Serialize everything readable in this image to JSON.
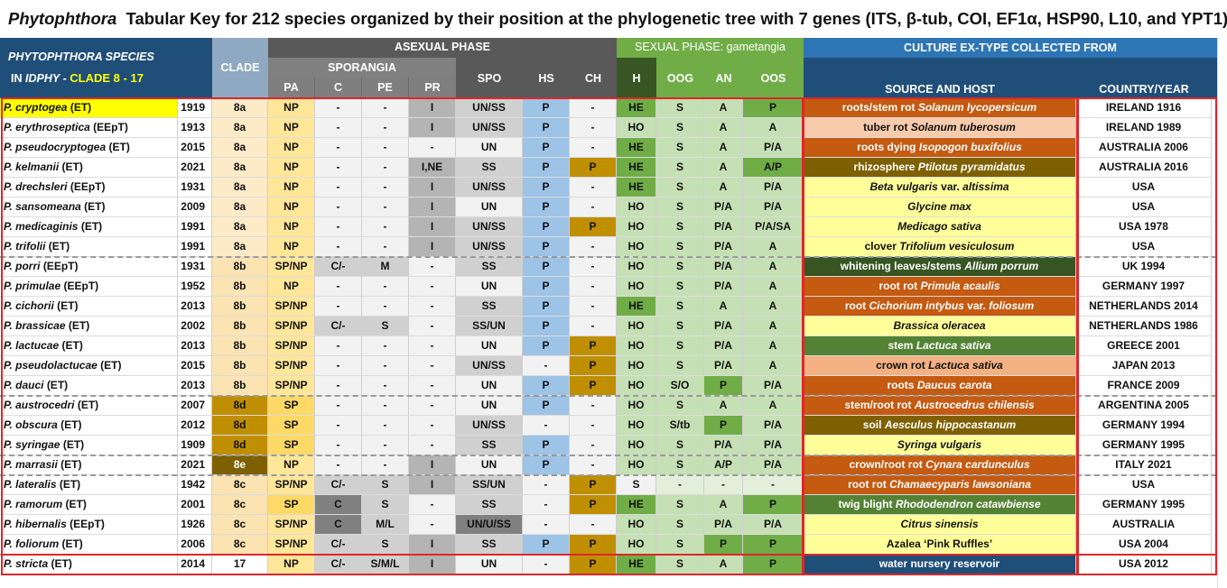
{
  "title": {
    "genus": "Phytophthora",
    "rest": "Tabular Key for 212 species organized by their position at the phylogenetic tree with 7 genes (ITS, β-tub, COI, EF1α, HSP90, L10, and YPT1)"
  },
  "header": {
    "species_line1": "PHYTOPHTHORA  SPECIES",
    "species_line2_prefix": "IN ",
    "species_line2_italic": "IDPHY",
    "species_line2_mid": " -  ",
    "species_line2_clade": "CLADE 8 - 17",
    "clade": "CLADE",
    "asexual": "ASEXUAL PHASE",
    "sporangia": "SPORANGIA",
    "pa": "PA",
    "c": "C",
    "pe": "PE",
    "pr": "PR",
    "spo": "SPO",
    "hs": "HS",
    "ch": "CH",
    "sexual": "SEXUAL PHASE: gametangia",
    "h": "H",
    "oog": "OOG",
    "an": "AN",
    "oos": "OOS",
    "culture": "CULTURE EX-TYPE COLLECTED FROM",
    "source": "SOURCE AND HOST",
    "country": "COUNTRY/YEAR"
  },
  "colors": {
    "header_blue": "#1f4e79",
    "clade_header": "#8ea9c1",
    "asexual_header": "#595959",
    "sporangia_header": "#808080",
    "sexual_header": "#70ad47",
    "h_header": "#375623",
    "culture_header": "#2e75b6",
    "highlight_yellow": "#ffff00",
    "red_border": "#e0262a"
  },
  "rows": [
    {
      "species": "P. cryptogea",
      "tag": "(ET)",
      "year": "1919",
      "clade": "8a",
      "pa": "NP",
      "c": "-",
      "pe": "-",
      "pr": "I",
      "spo": "UN/SS",
      "hs": "P",
      "ch": "-",
      "h": "HE",
      "oog": "S",
      "an": "A",
      "oos": "P",
      "source": [
        {
          "t": "roots/stem rot "
        },
        {
          "t": "Solanum lycopersicum",
          "i": true
        }
      ],
      "country": "IRELAND 1916"
    },
    {
      "species": "P. erythroseptica",
      "tag": "(EEpT)",
      "year": "1913",
      "clade": "8a",
      "pa": "NP",
      "c": "-",
      "pe": "-",
      "pr": "I",
      "spo": "UN/SS",
      "hs": "P",
      "ch": "-",
      "h": "HO",
      "oog": "S",
      "an": "A",
      "oos": "A",
      "source": [
        {
          "t": "tuber rot "
        },
        {
          "t": "Solanum tuberosum",
          "i": true
        }
      ],
      "country": "IRELAND 1989"
    },
    {
      "species": "P. pseudocryptogea",
      "tag": "(ET)",
      "year": "2015",
      "clade": "8a",
      "pa": "NP",
      "c": "-",
      "pe": "-",
      "pr": "-",
      "spo": "UN",
      "hs": "P",
      "ch": "-",
      "h": "HE",
      "oog": "S",
      "an": "A",
      "oos": "P/A",
      "source": [
        {
          "t": "roots dying "
        },
        {
          "t": "Isopogon buxifolius",
          "i": true
        }
      ],
      "country": "AUSTRALIA 2006"
    },
    {
      "species": "P. kelmanii",
      "tag": "(ET)",
      "year": "2021",
      "clade": "8a",
      "pa": "NP",
      "c": "-",
      "pe": "-",
      "pr": "I,NE",
      "spo": "SS",
      "hs": "P",
      "ch": "P",
      "h": "HE",
      "oog": "S",
      "an": "A",
      "oos": "A/P",
      "source": [
        {
          "t": "rhizosphere "
        },
        {
          "t": "Ptilotus pyramidatus",
          "i": true
        }
      ],
      "country": "AUSTRALIA 2016"
    },
    {
      "species": "P. drechsleri",
      "tag": "(EEpT)",
      "year": "1931",
      "clade": "8a",
      "pa": "NP",
      "c": "-",
      "pe": "-",
      "pr": "I",
      "spo": "UN/SS",
      "hs": "P",
      "ch": "-",
      "h": "HE",
      "oog": "S",
      "an": "A",
      "oos": "P/A",
      "source": [
        {
          "t": "Beta vulgaris",
          "i": true
        },
        {
          "t": "  var. "
        },
        {
          "t": "altissima",
          "i": true
        }
      ],
      "country": "USA"
    },
    {
      "species": "P. sansomeana",
      "tag": "(ET)",
      "year": "2009",
      "clade": "8a",
      "pa": "NP",
      "c": "-",
      "pe": "-",
      "pr": "I",
      "spo": "UN",
      "hs": "P",
      "ch": "-",
      "h": "HO",
      "oog": "S",
      "an": "P/A",
      "oos": "P/A",
      "source": [
        {
          "t": "Glycine max",
          "i": true
        }
      ],
      "country": "USA"
    },
    {
      "species": "P. medicaginis",
      "tag": "(ET)",
      "year": "1991",
      "clade": "8a",
      "pa": "NP",
      "c": "-",
      "pe": "-",
      "pr": "I",
      "spo": "UN/SS",
      "hs": "P",
      "ch": "P",
      "h": "HO",
      "oog": "S",
      "an": "P/A",
      "oos": "P/A/SA",
      "source": [
        {
          "t": "Medicago sativa",
          "i": true
        }
      ],
      "country": "USA 1978"
    },
    {
      "species": "P. trifolii",
      "tag": "(ET)",
      "year": "1991",
      "clade": "8a",
      "pa": "NP",
      "c": "-",
      "pe": "-",
      "pr": "I",
      "spo": "UN/SS",
      "hs": "P",
      "ch": "-",
      "h": "HO",
      "oog": "S",
      "an": "P/A",
      "oos": "A",
      "source": [
        {
          "t": "clover "
        },
        {
          "t": "Trifolium vesiculosum",
          "i": true
        }
      ],
      "country": "USA"
    },
    {
      "species": "P. porri",
      "tag": "(EEpT)",
      "year": "1931",
      "clade": "8b",
      "pa": "SP/NP",
      "c": "C/-",
      "pe": "M",
      "pr": "-",
      "spo": "SS",
      "hs": "P",
      "ch": "-",
      "h": "HO",
      "oog": "S",
      "an": "P/A",
      "oos": "A",
      "source": [
        {
          "t": "whitening leaves/stems "
        },
        {
          "t": "Allium porrum",
          "i": true
        }
      ],
      "country": "UK 1994"
    },
    {
      "species": "P. primulae",
      "tag": "(EEpT)",
      "year": "1952",
      "clade": "8b",
      "pa": "NP",
      "c": "-",
      "pe": "-",
      "pr": "-",
      "spo": "UN",
      "hs": "P",
      "ch": "-",
      "h": "HO",
      "oog": "S",
      "an": "P/A",
      "oos": "A",
      "source": [
        {
          "t": "root rot "
        },
        {
          "t": "Primula acaulis",
          "i": true
        }
      ],
      "country": "GERMANY 1997"
    },
    {
      "species": "P. cichorii",
      "tag": "(ET)",
      "year": "2013",
      "clade": "8b",
      "pa": "SP/NP",
      "c": "-",
      "pe": "-",
      "pr": "-",
      "spo": "SS",
      "hs": "P",
      "ch": "-",
      "h": "HE",
      "oog": "S",
      "an": "A",
      "oos": "A",
      "source": [
        {
          "t": "root "
        },
        {
          "t": "Cichorium intybus",
          "i": true
        },
        {
          "t": "  var. "
        },
        {
          "t": "foliosum",
          "i": true
        }
      ],
      "country": "NETHERLANDS 2014"
    },
    {
      "species": "P. brassicae",
      "tag": "(ET)",
      "year": "2002",
      "clade": "8b",
      "pa": "SP/NP",
      "c": "C/-",
      "pe": "S",
      "pr": "-",
      "spo": "SS/UN",
      "hs": "P",
      "ch": "-",
      "h": "HO",
      "oog": "S",
      "an": "P/A",
      "oos": "A",
      "source": [
        {
          "t": "Brassica oleracea",
          "i": true
        }
      ],
      "country": "NETHERLANDS 1986"
    },
    {
      "species": "P. lactucae",
      "tag": "(ET)",
      "year": "2013",
      "clade": "8b",
      "pa": "SP/NP",
      "c": "-",
      "pe": "-",
      "pr": "-",
      "spo": "UN",
      "hs": "P",
      "ch": "P",
      "h": "HO",
      "oog": "S",
      "an": "P/A",
      "oos": "A",
      "source": [
        {
          "t": "stem "
        },
        {
          "t": "Lactuca sativa",
          "i": true
        }
      ],
      "country": "GREECE 2001"
    },
    {
      "species": "P. pseudolactucae",
      "tag": "(ET)",
      "year": "2015",
      "clade": "8b",
      "pa": "SP/NP",
      "c": "-",
      "pe": "-",
      "pr": "-",
      "spo": "UN/SS",
      "hs": "-",
      "ch": "P",
      "h": "HO",
      "oog": "S",
      "an": "P/A",
      "oos": "A",
      "source": [
        {
          "t": "crown rot "
        },
        {
          "t": "Lactuca sativa",
          "i": true
        }
      ],
      "country": "JAPAN 2013"
    },
    {
      "species": "P. dauci",
      "tag": "(ET)",
      "year": "2013",
      "clade": "8b",
      "pa": "SP/NP",
      "c": "-",
      "pe": "-",
      "pr": "-",
      "spo": "UN",
      "hs": "P",
      "ch": "P",
      "h": "HO",
      "oog": "S/O",
      "an": "P",
      "oos": "P/A",
      "source": [
        {
          "t": "roots "
        },
        {
          "t": "Daucus carota",
          "i": true
        }
      ],
      "country": "FRANCE 2009"
    },
    {
      "species": "P. austrocedri",
      "tag": "(ET)",
      "year": "2007",
      "clade": "8d",
      "pa": "SP",
      "c": "-",
      "pe": "-",
      "pr": "-",
      "spo": "UN",
      "hs": "P",
      "ch": "-",
      "h": "HO",
      "oog": "S",
      "an": "A",
      "oos": "A",
      "source": [
        {
          "t": "stem/root rot "
        },
        {
          "t": "Austrocedrus chilensis",
          "i": true
        }
      ],
      "country": "ARGENTINA 2005"
    },
    {
      "species": "P. obscura",
      "tag": "(ET)",
      "year": "2012",
      "clade": "8d",
      "pa": "SP",
      "c": "-",
      "pe": "-",
      "pr": "-",
      "spo": "UN/SS",
      "hs": "-",
      "ch": "-",
      "h": "HO",
      "oog": "S/tb",
      "an": "P",
      "oos": "P/A",
      "source": [
        {
          "t": "soil "
        },
        {
          "t": "Aesculus hippocastanum",
          "i": true
        }
      ],
      "country": "GERMANY 1994"
    },
    {
      "species": "P. syringae",
      "tag": "(ET)",
      "year": "1909",
      "clade": "8d",
      "pa": "SP",
      "c": "-",
      "pe": "-",
      "pr": "-",
      "spo": "SS",
      "hs": "P",
      "ch": "-",
      "h": "HO",
      "oog": "S",
      "an": "P/A",
      "oos": "P/A",
      "source": [
        {
          "t": "Syringa vulgaris",
          "i": true
        }
      ],
      "country": "GERMANY 1995"
    },
    {
      "species": "P. marrasii",
      "tag": "(ET)",
      "year": "2021",
      "clade": "8e",
      "pa": "NP",
      "c": "-",
      "pe": "-",
      "pr": "I",
      "spo": "UN",
      "hs": "P",
      "ch": "-",
      "h": "HO",
      "oog": "S",
      "an": "A/P",
      "oos": "P/A",
      "source": [
        {
          "t": "crown/root rot "
        },
        {
          "t": "Cynara cardunculus",
          "i": true
        }
      ],
      "country": "ITALY 2021"
    },
    {
      "species": "P. lateralis",
      "tag": "(ET)",
      "year": "1942",
      "clade": "8c",
      "pa": "SP/NP",
      "c": "C/-",
      "pe": "S",
      "pr": "I",
      "spo": "SS/UN",
      "hs": "-",
      "ch": "P",
      "h": "S",
      "oog": "-",
      "an": "-",
      "oos": "-",
      "source": [
        {
          "t": "root rot "
        },
        {
          "t": "Chamaecyparis lawsoniana",
          "i": true
        }
      ],
      "country": "USA"
    },
    {
      "species": "P. ramorum",
      "tag": "(ET)",
      "year": "2001",
      "clade": "8c",
      "pa": "SP",
      "c": "C",
      "pe": "S",
      "pr": "-",
      "spo": "SS",
      "hs": "-",
      "ch": "P",
      "h": "HE",
      "oog": "S",
      "an": "A",
      "oos": "P",
      "source": [
        {
          "t": "twig blight "
        },
        {
          "t": "Rhododendron catawbiense",
          "i": true
        }
      ],
      "country": "GERMANY 1995"
    },
    {
      "species": "P. hibernalis",
      "tag": "(EEpT)",
      "year": "1926",
      "clade": "8c",
      "pa": "SP/NP",
      "c": "C",
      "pe": "M/L",
      "pr": "-",
      "spo": "UN/U/SS",
      "hs": "-",
      "ch": "-",
      "h": "HO",
      "oog": "S",
      "an": "P/A",
      "oos": "P/A",
      "source": [
        {
          "t": "Citrus sinensis",
          "i": true
        }
      ],
      "country": "AUSTRALIA"
    },
    {
      "species": "P. foliorum",
      "tag": "(ET)",
      "year": "2006",
      "clade": "8c",
      "pa": "SP/NP",
      "c": "C/-",
      "pe": "S",
      "pr": "I",
      "spo": "SS",
      "hs": "P",
      "ch": "P",
      "h": "HO",
      "oog": "S",
      "an": "P",
      "oos": "P",
      "source": [
        {
          "t": "Azalea ‘Pink Ruffles’"
        }
      ],
      "country": "USA 2004"
    },
    {
      "species": "P. stricta",
      "tag": "(ET)",
      "year": "2014",
      "clade": "17",
      "pa": "NP",
      "c": "C/-",
      "pe": "S/M/L",
      "pr": "I",
      "spo": "UN",
      "hs": "-",
      "ch": "P",
      "h": "HE",
      "oog": "S",
      "an": "A",
      "oos": "P",
      "source": [
        {
          "t": "water nursery reservoir"
        }
      ],
      "country": "USA 2012"
    }
  ]
}
